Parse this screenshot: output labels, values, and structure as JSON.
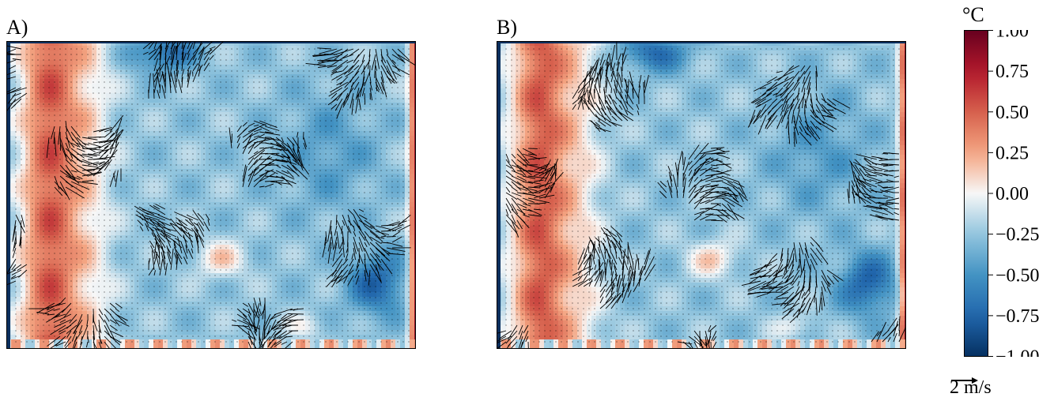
{
  "panels": [
    {
      "id": "A",
      "label": "A)"
    },
    {
      "id": "B",
      "label": "B)"
    }
  ],
  "colorbar": {
    "unit": "°C",
    "ticks": [
      "1.00",
      "0.75",
      "0.50",
      "0.25",
      "0.00",
      "−0.25",
      "−0.50",
      "−0.75",
      "−1.00"
    ]
  },
  "quiver_key": {
    "label": "2 m/s"
  },
  "colors": {
    "cmap_low": "#053061",
    "cmap_mid": "#f7f7f7",
    "cmap_high": "#67001f",
    "arrow": "#000000"
  },
  "chart_data": {
    "type": "heatmap",
    "description_keys": "temperature anomaly field with overlaid velocity vectors",
    "colorbar_range": [
      -1.0,
      1.0
    ],
    "colorbar_unit": "°C",
    "colormap": "RdBu_r",
    "vector_scale_reference": "2 m/s",
    "panels": [
      {
        "label": "A)",
        "field_pattern": "warm left band, cool center/right, warm right edge"
      },
      {
        "label": "B)",
        "field_pattern": "warm left band, cool center/right, warm right edge"
      }
    ]
  }
}
